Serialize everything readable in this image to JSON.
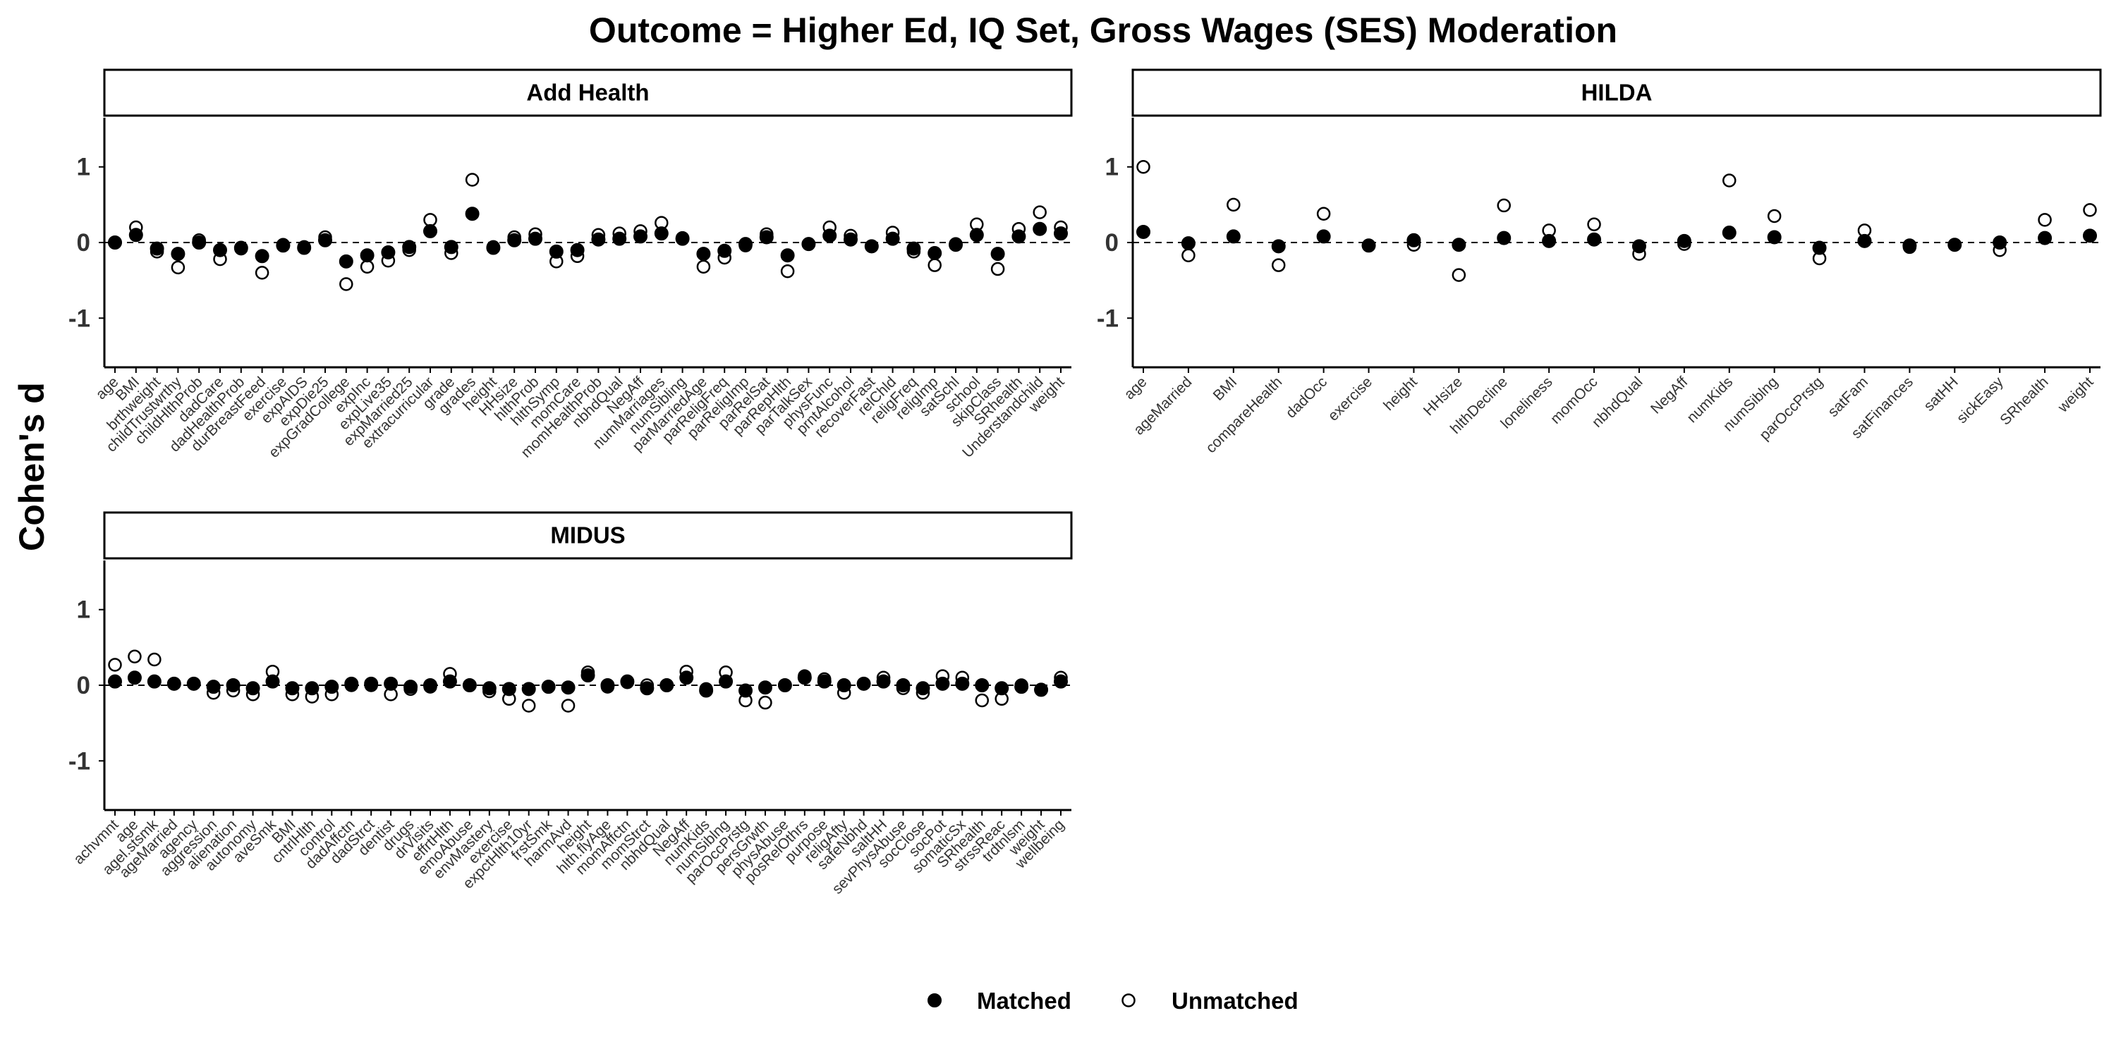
{
  "chart_data": {
    "type": "scatter",
    "title": "Outcome = Higher Ed, IQ Set, Gross Wages (SES) Moderation",
    "ylabel": "Cohen's d",
    "legend": {
      "position": "bottom",
      "entries": [
        {
          "name": "Matched",
          "marker": "filled-circle"
        },
        {
          "name": "Unmatched",
          "marker": "open-circle"
        }
      ]
    },
    "colors": {
      "matched_fill": "#000000",
      "unmatched_fill": "#ffffff",
      "stroke": "#000000",
      "reference_line": "#000000"
    },
    "reference_line": {
      "y": 0,
      "style": "dashed"
    },
    "grid": false,
    "panels": [
      {
        "name": "Add Health",
        "ylim": [
          -1.65,
          1.65
        ],
        "yticks": [
          -1,
          0,
          1
        ],
        "categories": [
          "age",
          "BMI",
          "brthweight",
          "childTrustwrthy",
          "childHlthProb",
          "dadCare",
          "dadHealthProb",
          "durBreastFeed",
          "exercise",
          "expAIDS",
          "expDie25",
          "expGradCollege",
          "expInc",
          "expLive35",
          "expMarried25",
          "extracurricular",
          "grade",
          "grades",
          "height",
          "HHsize",
          "hlthProb",
          "hlthSymp",
          "momCare",
          "momHealthProb",
          "nbhdQual",
          "NegAff",
          "numMarriages",
          "numSibling",
          "parMarriedAge",
          "parReligFreq",
          "parReligImp",
          "parRelSat",
          "parRepHlth",
          "parTalkSex",
          "physFunc",
          "prntAlcohol",
          "recoverFast",
          "relChld",
          "religFreq",
          "religImp",
          "satSchl",
          "school",
          "skipClass",
          "SRhealth",
          "Understandchild",
          "weight"
        ],
        "matched": [
          0.0,
          0.1,
          -0.08,
          -0.15,
          0.0,
          -0.1,
          -0.07,
          -0.18,
          -0.04,
          -0.07,
          0.03,
          -0.25,
          -0.17,
          -0.13,
          -0.06,
          0.15,
          -0.06,
          0.38,
          -0.07,
          0.03,
          0.05,
          -0.12,
          -0.1,
          0.04,
          0.05,
          0.08,
          0.12,
          0.05,
          -0.15,
          -0.11,
          -0.02,
          0.07,
          -0.17,
          -0.02,
          0.09,
          0.04,
          -0.05,
          0.05,
          -0.08,
          -0.14,
          -0.03,
          0.1,
          -0.15,
          0.08,
          0.18,
          0.12
        ],
        "unmatched": [
          0.0,
          0.2,
          -0.12,
          -0.33,
          0.03,
          -0.22,
          -0.08,
          -0.4,
          -0.03,
          -0.06,
          0.07,
          -0.55,
          -0.32,
          -0.24,
          -0.1,
          0.3,
          -0.14,
          0.83,
          -0.06,
          0.07,
          0.11,
          -0.25,
          -0.18,
          0.1,
          0.12,
          0.15,
          0.26,
          0.06,
          -0.32,
          -0.2,
          -0.04,
          0.11,
          -0.38,
          -0.02,
          0.2,
          0.09,
          -0.05,
          0.13,
          -0.12,
          -0.3,
          -0.02,
          0.24,
          -0.35,
          0.18,
          0.4,
          0.2
        ]
      },
      {
        "name": "HILDA",
        "ylim": [
          -1.65,
          1.65
        ],
        "yticks": [
          -1,
          0,
          1
        ],
        "categories": [
          "age",
          "ageMarried",
          "BMI",
          "compareHealth",
          "dadOcc",
          "exercise",
          "height",
          "HHsize",
          "hlthDecline",
          "loneliness",
          "momOcc",
          "nbhdQual",
          "NegAff",
          "numKids",
          "numSiblng",
          "parOccPrstg",
          "satFam",
          "satFinances",
          "satHH",
          "sickEasy",
          "SRhealth",
          "weight"
        ],
        "matched": [
          0.14,
          -0.01,
          0.08,
          -0.05,
          0.08,
          -0.04,
          0.03,
          -0.03,
          0.06,
          0.02,
          0.04,
          -0.05,
          0.02,
          0.13,
          0.07,
          -0.07,
          0.02,
          -0.04,
          -0.03,
          0.0,
          0.06,
          0.09
        ],
        "unmatched": [
          1.0,
          -0.17,
          0.5,
          -0.3,
          0.38,
          -0.04,
          -0.03,
          -0.43,
          0.49,
          0.16,
          0.24,
          -0.15,
          -0.02,
          0.82,
          0.35,
          -0.21,
          0.16,
          -0.06,
          -0.03,
          -0.1,
          0.3,
          0.43
        ]
      },
      {
        "name": "MIDUS",
        "ylim": [
          -1.65,
          1.65
        ],
        "yticks": [
          -1,
          0,
          1
        ],
        "categories": [
          "achvmnt",
          "age",
          "agel.stsmk",
          "ageMarried",
          "agency",
          "aggression",
          "alienation",
          "autonomy",
          "aveSmk",
          "BMI",
          "cntrlHlth",
          "control",
          "dadAffctn",
          "dadStrct",
          "dentist",
          "drugs",
          "drVisits",
          "effrtHlth",
          "emoAbuse",
          "envMastery",
          "exercise",
          "expctHlth10yr",
          "frstSmk",
          "harmAvd",
          "height",
          "hlth.flyAge",
          "momAffctn",
          "momStrct",
          "nbhdQual",
          "NegAff",
          "numKids",
          "numSiblng",
          "parOccPrstg",
          "persGrwth",
          "physAbuse",
          "posRelOthrs",
          "purpose",
          "religAfty",
          "safeNbhd",
          "saltHH",
          "sevPhysAbuse",
          "socClose",
          "socPot",
          "somaticSx",
          "SRhealth",
          "strssReac",
          "trdtnlsm",
          "weight",
          "wellbeing"
        ],
        "matched": [
          0.05,
          0.1,
          0.05,
          0.02,
          0.02,
          -0.02,
          0.0,
          -0.04,
          0.05,
          -0.04,
          -0.04,
          -0.02,
          0.02,
          0.02,
          0.02,
          -0.02,
          0.0,
          0.05,
          0.0,
          -0.04,
          -0.05,
          -0.05,
          -0.02,
          -0.03,
          0.13,
          0.0,
          0.05,
          -0.04,
          0.0,
          0.1,
          -0.07,
          0.05,
          -0.07,
          -0.03,
          0.0,
          0.1,
          0.05,
          0.0,
          0.02,
          0.05,
          0.0,
          -0.04,
          0.02,
          0.02,
          0.0,
          -0.04,
          -0.02,
          -0.06,
          0.05
        ],
        "unmatched": [
          0.27,
          0.38,
          0.34,
          0.02,
          0.02,
          -0.1,
          -0.07,
          -0.12,
          0.18,
          -0.12,
          -0.15,
          -0.12,
          0.0,
          0.0,
          -0.12,
          -0.05,
          -0.02,
          0.15,
          0.0,
          -0.08,
          -0.18,
          -0.27,
          -0.02,
          -0.27,
          0.17,
          -0.02,
          0.04,
          0.0,
          0.0,
          0.18,
          -0.05,
          0.17,
          -0.2,
          -0.23,
          0.0,
          0.12,
          0.08,
          -0.1,
          0.02,
          0.1,
          -0.04,
          -0.1,
          0.12,
          0.1,
          -0.2,
          -0.18,
          0.0,
          -0.06,
          0.1
        ]
      }
    ]
  }
}
